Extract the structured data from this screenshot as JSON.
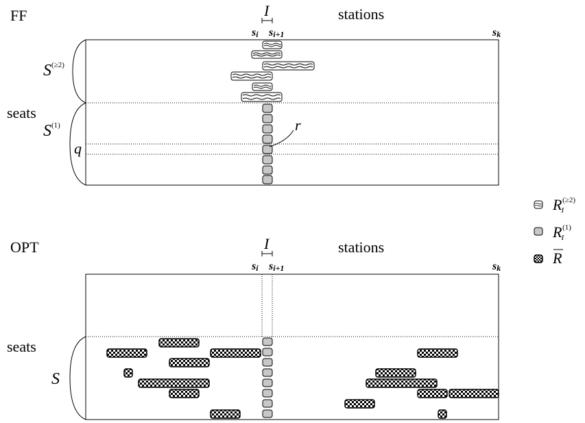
{
  "ff": {
    "title": "FF",
    "interval_label": "I",
    "stations_label": "stations",
    "station_si": "s",
    "station_si_sub": "i",
    "station_si1": "s",
    "station_si1_sub": "i+1",
    "station_sk": "s",
    "station_sk_sub": "k",
    "upper_group": {
      "symbol": "S",
      "superscript": "(≥2)"
    },
    "lower_group": {
      "symbol": "S",
      "superscript": "(1)"
    },
    "seats_label": "seats",
    "q_label": "q",
    "r_label": "r"
  },
  "opt": {
    "title": "OPT",
    "interval_label": "I",
    "stations_label": "stations",
    "station_si": "s",
    "station_si_sub": "i",
    "station_si1": "s",
    "station_si1_sub": "i+1",
    "station_sk": "s",
    "station_sk_sub": "k",
    "seats_label": "seats",
    "group_symbol": "S"
  },
  "legend": [
    {
      "pattern": "wavy",
      "symbol": "R",
      "subscript": "I",
      "superscript": "(≥2)"
    },
    {
      "pattern": "gray",
      "symbol": "R",
      "subscript": "I",
      "superscript": "(1)"
    },
    {
      "pattern": "checker",
      "symbol": "R",
      "overline": true
    }
  ],
  "colors": {
    "line": "#000000",
    "gray_fill": "#c8c8c8",
    "background": "#ffffff"
  }
}
